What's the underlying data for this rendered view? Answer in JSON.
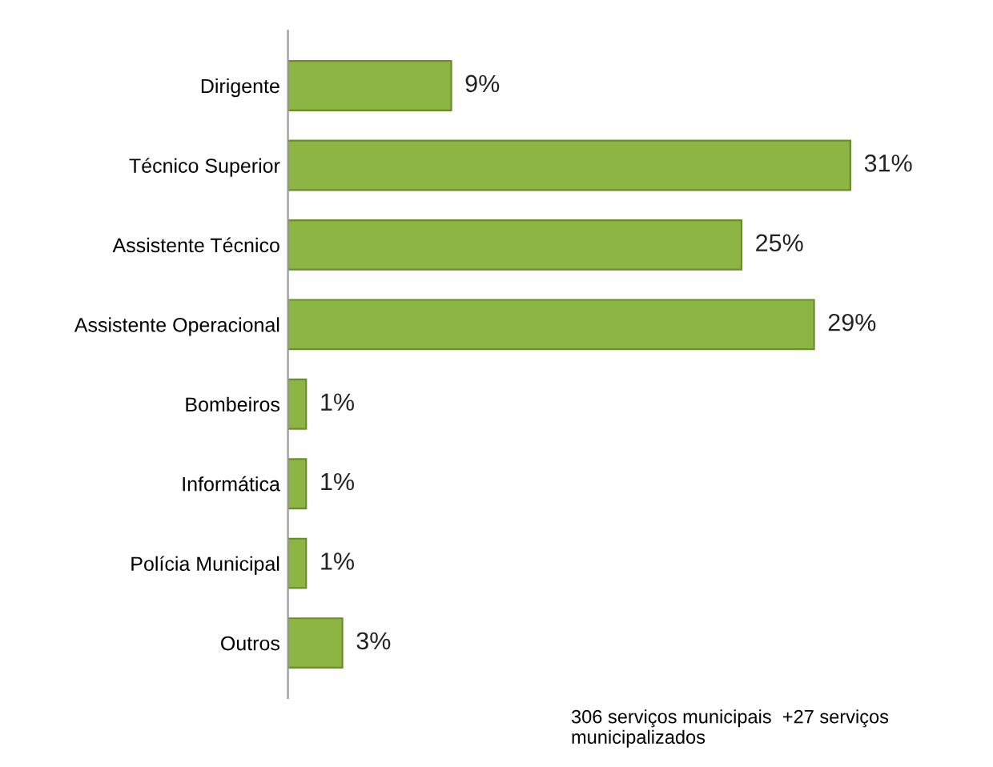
{
  "chart_data": {
    "type": "bar",
    "orientation": "horizontal",
    "categories": [
      "Dirigente",
      "Técnico Superior",
      "Assistente Técnico",
      "Assistente Operacional",
      "Bombeiros",
      "Informática",
      "Polícia Municipal",
      "Outros"
    ],
    "values": [
      9,
      31,
      25,
      29,
      1,
      1,
      1,
      3
    ],
    "value_labels": [
      "9%",
      "31%",
      "25%",
      "29%",
      "1%",
      "1%",
      "1%",
      "3%"
    ],
    "color": "#8db543",
    "grid": false,
    "legend": false,
    "annotations": [
      "306 serviços municipais  +27 serviços municipalizados"
    ]
  }
}
